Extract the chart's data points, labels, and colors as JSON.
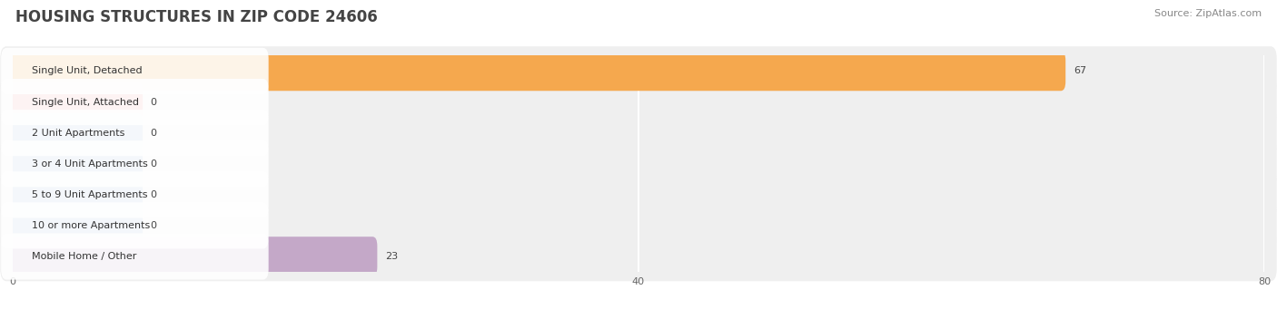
{
  "title": "HOUSING STRUCTURES IN ZIP CODE 24606",
  "source": "Source: ZipAtlas.com",
  "categories": [
    "Single Unit, Detached",
    "Single Unit, Attached",
    "2 Unit Apartments",
    "3 or 4 Unit Apartments",
    "5 to 9 Unit Apartments",
    "10 or more Apartments",
    "Mobile Home / Other"
  ],
  "values": [
    67,
    0,
    0,
    0,
    0,
    0,
    23
  ],
  "bar_colors": [
    "#F5A84E",
    "#F4A0A0",
    "#A8C4E0",
    "#A8C4E0",
    "#A8C4E0",
    "#A8C4E0",
    "#C4A8C8"
  ],
  "xlim": [
    0,
    80
  ],
  "xticks": [
    0,
    40,
    80
  ],
  "background_color": "#ffffff",
  "row_bg_color": "#efefef",
  "title_fontsize": 12,
  "label_fontsize": 8,
  "value_fontsize": 8,
  "source_fontsize": 8,
  "bar_height": 0.68,
  "zero_stub": 8
}
